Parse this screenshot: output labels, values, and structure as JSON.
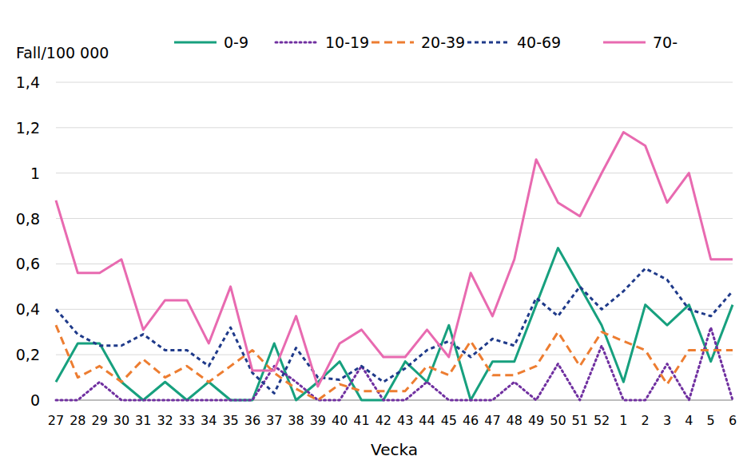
{
  "chart_data": {
    "type": "line",
    "y_label": "Fall/100 000",
    "x_label": "Vecka",
    "categories": [
      "27",
      "28",
      "29",
      "30",
      "31",
      "32",
      "33",
      "34",
      "35",
      "36",
      "37",
      "38",
      "39",
      "40",
      "41",
      "42",
      "43",
      "44",
      "45",
      "46",
      "47",
      "48",
      "49",
      "50",
      "51",
      "52",
      "1",
      "2",
      "3",
      "4",
      "5",
      "6"
    ],
    "series": [
      {
        "name": "0-9",
        "color": "#17a07e",
        "line_style": "solid",
        "values": [
          0.08,
          0.25,
          0.25,
          0.08,
          0,
          0.08,
          0,
          0.08,
          0,
          0,
          0.25,
          0,
          0.08,
          0.17,
          0,
          0,
          0.17,
          0.08,
          0.33,
          0,
          0.17,
          0.17,
          0.42,
          0.67,
          0.5,
          0.33,
          0.08,
          0.42,
          0.33,
          0.42,
          0.17,
          0.42
        ]
      },
      {
        "name": "10-19",
        "color": "#7030a0",
        "line_style": "dotted",
        "values": [
          0,
          0,
          0.08,
          0,
          0,
          0,
          0,
          0,
          0,
          0,
          0.15,
          0.08,
          0,
          0,
          0.15,
          0,
          0,
          0.08,
          0,
          0,
          0,
          0.08,
          0,
          0.16,
          0,
          0.24,
          0,
          0,
          0.16,
          0,
          0.32,
          0
        ]
      },
      {
        "name": "20-39",
        "color": "#ed7d31",
        "line_style": "dashed",
        "values": [
          0.33,
          0.1,
          0.15,
          0.08,
          0.18,
          0.1,
          0.15,
          0.08,
          0.15,
          0.22,
          0.12,
          0.05,
          0,
          0.07,
          0.04,
          0.04,
          0.04,
          0.15,
          0.11,
          0.26,
          0.11,
          0.11,
          0.15,
          0.3,
          0.15,
          0.3,
          0.26,
          0.22,
          0.07,
          0.22,
          0.22,
          0.22
        ]
      },
      {
        "name": "40-69",
        "color": "#1f3a8a",
        "line_style": "short-dashed",
        "values": [
          0.4,
          0.29,
          0.24,
          0.24,
          0.29,
          0.22,
          0.22,
          0.15,
          0.32,
          0.12,
          0.03,
          0.23,
          0.1,
          0.09,
          0.15,
          0.08,
          0.14,
          0.22,
          0.26,
          0.19,
          0.27,
          0.24,
          0.45,
          0.37,
          0.5,
          0.4,
          0.48,
          0.58,
          0.53,
          0.4,
          0.37,
          0.48
        ]
      },
      {
        "name": "70-",
        "color": "#e86ab0",
        "line_style": "solid",
        "values": [
          0.88,
          0.56,
          0.56,
          0.62,
          0.31,
          0.44,
          0.44,
          0.25,
          0.5,
          0.13,
          0.13,
          0.37,
          0.06,
          0.25,
          0.31,
          0.19,
          0.19,
          0.31,
          0.19,
          0.56,
          0.37,
          0.62,
          1.06,
          0.87,
          0.81,
          1.0,
          1.18,
          1.12,
          0.87,
          1.0,
          0.62,
          0.62
        ]
      }
    ],
    "ylim": [
      0,
      1.4
    ],
    "yticks": [
      0,
      {
        "value": 0.2,
        "label": "0,2"
      },
      {
        "value": 0.4,
        "label": "0,4"
      },
      {
        "value": 0.6,
        "label": "0,6"
      },
      {
        "value": 0.8,
        "label": "0,8"
      },
      1,
      {
        "value": 1.2,
        "label": "1,2"
      },
      {
        "value": 1.4,
        "label": "1,4"
      }
    ],
    "grid": true,
    "legend": "top"
  }
}
